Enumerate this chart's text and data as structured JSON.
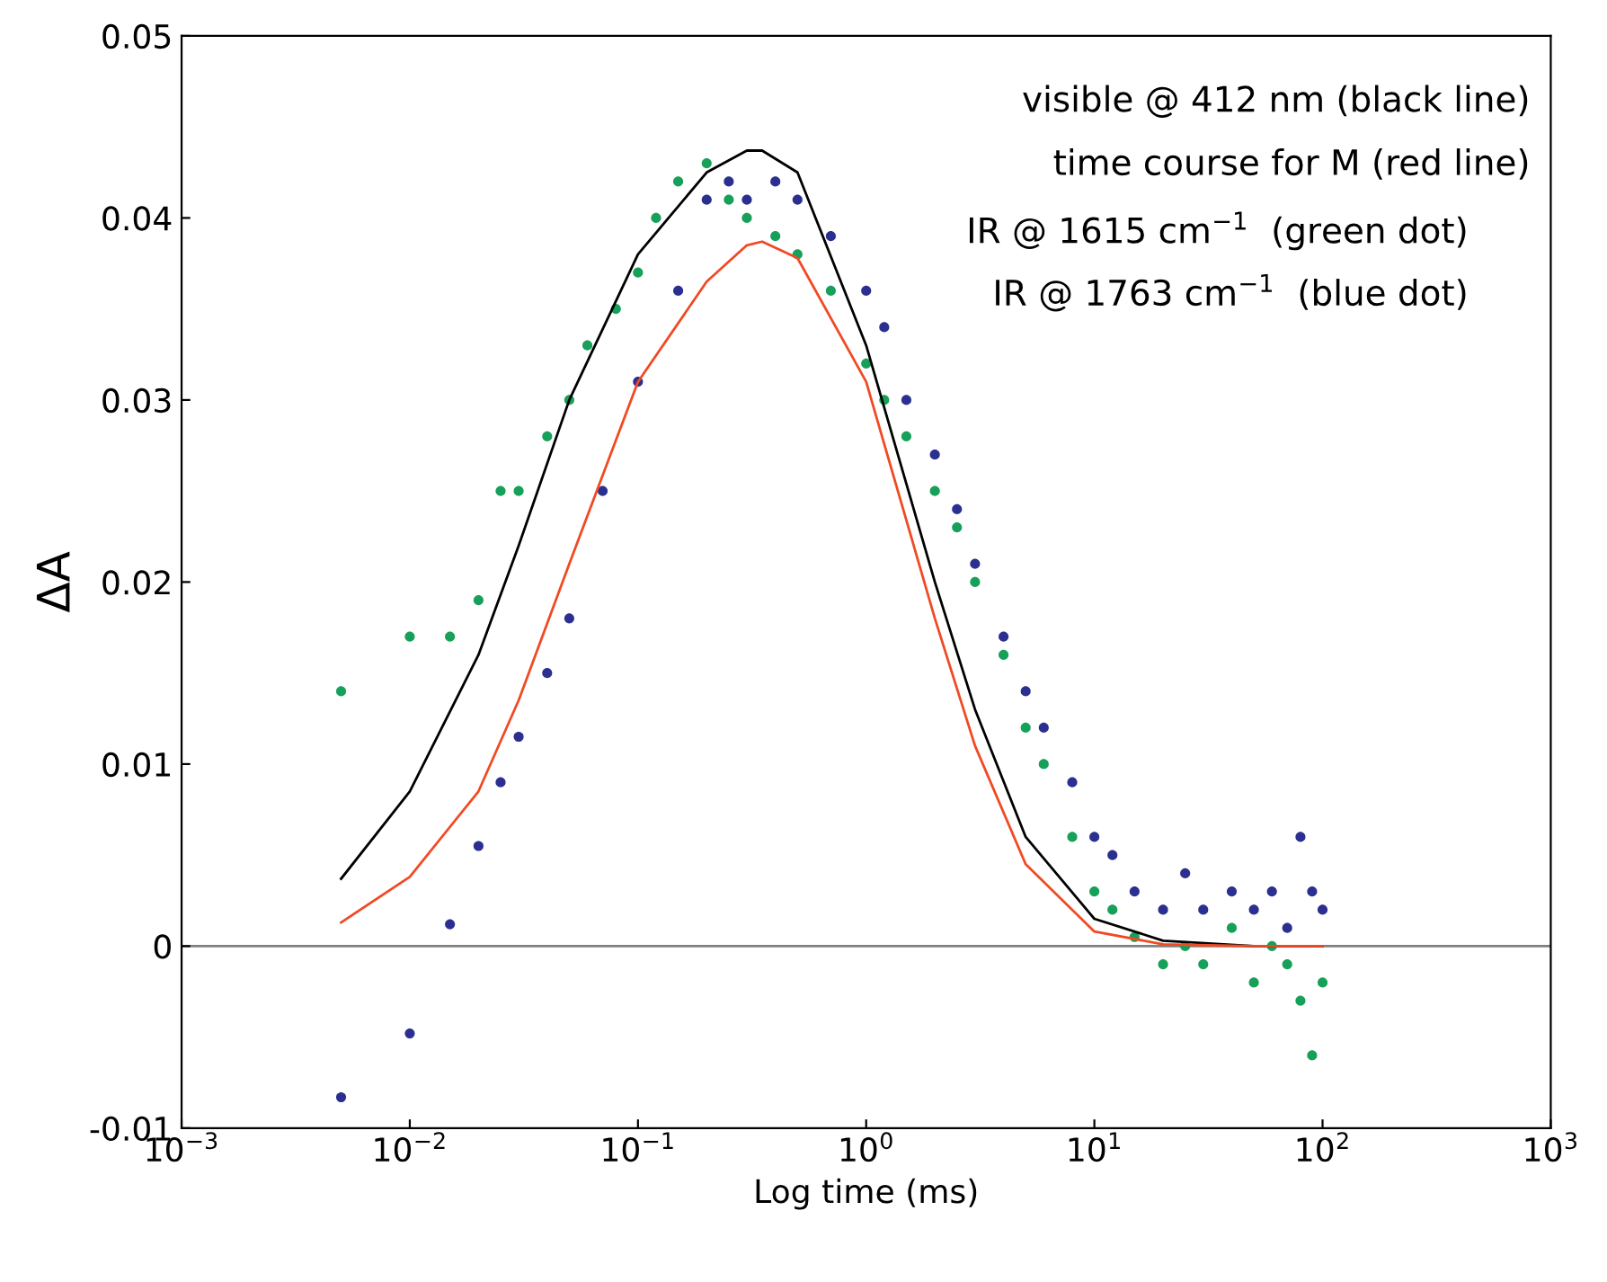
{
  "chart_data": {
    "type": "line",
    "xlabel": "Log time (ms)",
    "ylabel": "ΔA",
    "log": "x",
    "grid": false,
    "legend": false,
    "xlim": [
      0.001,
      1000
    ],
    "xticks": [
      {
        "value": 0.001,
        "label": "10$^{−3}$"
      },
      {
        "value": 0.01,
        "label": "10$^{−2}$"
      },
      {
        "value": 0.1,
        "label": "10$^{−1}$"
      },
      {
        "value": 1,
        "label": "10$^{0}$"
      },
      {
        "value": 10,
        "label": "10$^{1}$"
      },
      {
        "value": 100,
        "label": "10$^{2}$"
      },
      {
        "value": 1000,
        "label": "10$^{3}$"
      }
    ],
    "ylim": [
      -0.01,
      0.05
    ],
    "yticks": [
      -0.01,
      0,
      0.01,
      0.02,
      0.03,
      0.04,
      0.05
    ],
    "ref_lines": [
      {
        "axis": "y",
        "value": 0,
        "color": "#808080"
      }
    ],
    "annotations": [
      "visible @ 412 nm (black line)",
      "time course for M (red line)",
      "IR @ 1615 cm$^{−1}$  (green dot)",
      "IR @ 1763 cm$^{−1}$  (blue dot)"
    ],
    "series": [
      {
        "type": "scatter",
        "marker": "circle",
        "color": "#16a05a",
        "x": [
          0.005,
          0.01,
          0.015,
          0.02,
          0.025,
          0.03,
          0.04,
          0.05,
          0.06,
          0.08,
          0.1,
          0.12,
          0.15,
          0.2,
          0.25,
          0.3,
          0.4,
          0.5,
          0.7,
          1,
          1.2,
          1.5,
          2,
          2.5,
          3,
          4,
          5,
          6,
          8,
          10,
          12,
          15,
          20,
          25,
          30,
          40,
          50,
          60,
          70,
          80,
          90,
          100
        ],
        "values": [
          0.014,
          0.017,
          0.017,
          0.019,
          0.025,
          0.025,
          0.028,
          0.03,
          0.033,
          0.035,
          0.037,
          0.04,
          0.042,
          0.043,
          0.041,
          0.04,
          0.039,
          0.038,
          0.036,
          0.032,
          0.03,
          0.028,
          0.025,
          0.023,
          0.02,
          0.016,
          0.012,
          0.01,
          0.006,
          0.003,
          0.002,
          0.0005,
          -0.001,
          0,
          -0.001,
          0.001,
          -0.002,
          0,
          -0.001,
          -0.003,
          -0.006,
          -0.002
        ]
      },
      {
        "type": "scatter",
        "marker": "circle",
        "color": "#2b2f8f",
        "x": [
          0.005,
          0.01,
          0.015,
          0.02,
          0.025,
          0.03,
          0.04,
          0.05,
          0.07,
          0.1,
          0.15,
          0.2,
          0.25,
          0.3,
          0.4,
          0.5,
          0.7,
          1,
          1.2,
          1.5,
          2,
          2.5,
          3,
          4,
          5,
          6,
          8,
          10,
          12,
          15,
          20,
          25,
          30,
          40,
          50,
          60,
          70,
          80,
          90,
          100
        ],
        "values": [
          -0.0083,
          -0.0048,
          0.0012,
          0.0055,
          0.009,
          0.0115,
          0.015,
          0.018,
          0.025,
          0.031,
          0.036,
          0.041,
          0.042,
          0.041,
          0.042,
          0.041,
          0.039,
          0.036,
          0.034,
          0.03,
          0.027,
          0.024,
          0.021,
          0.017,
          0.014,
          0.012,
          0.009,
          0.006,
          0.005,
          0.003,
          0.002,
          0.004,
          0.002,
          0.003,
          0.002,
          0.003,
          0.001,
          0.006,
          0.003,
          0.002
        ]
      },
      {
        "color": "#000000",
        "x": [
          0.005,
          0.01,
          0.02,
          0.03,
          0.05,
          0.1,
          0.2,
          0.3,
          0.35,
          0.5,
          1,
          2,
          3,
          5,
          10,
          20,
          50,
          100
        ],
        "values": [
          0.0037,
          0.0085,
          0.016,
          0.022,
          0.03,
          0.038,
          0.0425,
          0.0437,
          0.0437,
          0.0425,
          0.033,
          0.02,
          0.013,
          0.006,
          0.0015,
          0.0003,
          0,
          0
        ]
      },
      {
        "color": "#f04a24",
        "x": [
          0.005,
          0.01,
          0.02,
          0.03,
          0.05,
          0.1,
          0.2,
          0.3,
          0.35,
          0.5,
          1,
          2,
          3,
          5,
          10,
          20,
          50,
          100
        ],
        "values": [
          0.0013,
          0.0038,
          0.0085,
          0.0135,
          0.021,
          0.031,
          0.0365,
          0.0385,
          0.0387,
          0.0378,
          0.031,
          0.018,
          0.011,
          0.0045,
          0.0008,
          0.0001,
          0,
          0
        ]
      }
    ]
  }
}
